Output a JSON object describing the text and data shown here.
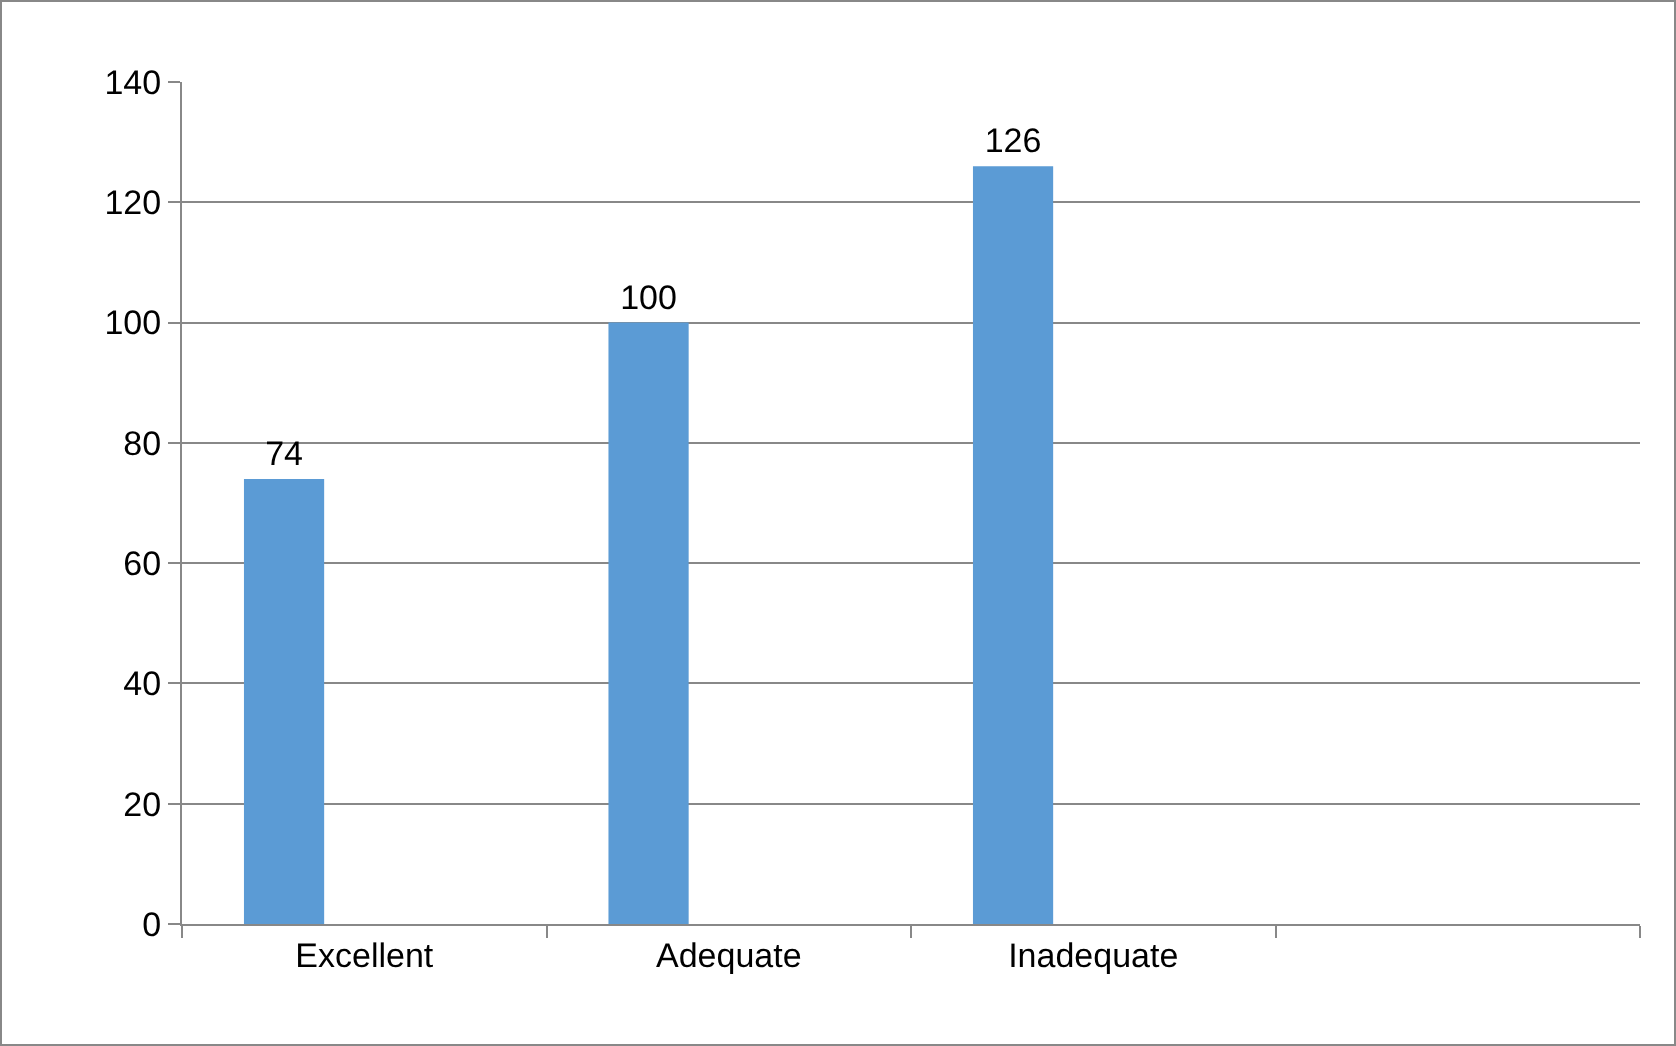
{
  "chart_data": {
    "type": "bar",
    "categories": [
      "Excellent",
      "Adequate",
      "Inadequate",
      null
    ],
    "values": [
      74,
      100,
      126,
      null
    ],
    "color": "#5b9bd5",
    "ylim": [
      0,
      140
    ],
    "yticks": [
      0,
      20,
      40,
      60,
      80,
      100,
      120,
      140
    ],
    "grid": "y",
    "data_labels": true
  }
}
